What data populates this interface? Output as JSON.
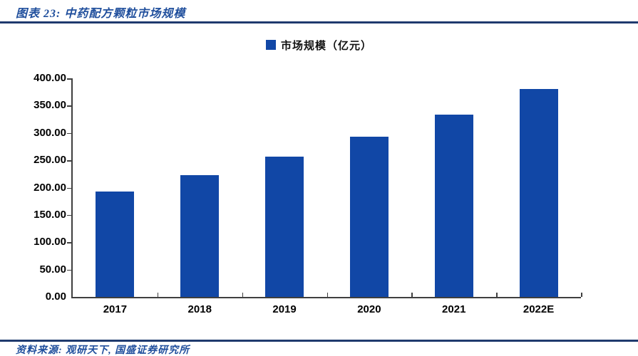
{
  "header": {
    "title": "图表 23:  中药配方颗粒市场规模"
  },
  "footer": {
    "source": "资料来源: 观研天下, 国盛证券研究所"
  },
  "colors": {
    "bar": "#1147A6",
    "accent_text": "#1F4E9C",
    "rule": "#1F3A6E",
    "axis": "#3F3F3F",
    "tick_label": "#000000"
  },
  "chart_data": {
    "type": "bar",
    "title": "图表 23: 中药配方颗粒市场规模",
    "categories": [
      "2017",
      "2018",
      "2019",
      "2020",
      "2021",
      "2022E"
    ],
    "series": [
      {
        "name": "市场规模（亿元）",
        "values": [
          193,
          223,
          257,
          293,
          334,
          380
        ]
      }
    ],
    "xlabel": "",
    "ylabel": "",
    "ylim": [
      0,
      400
    ],
    "ytick_step": 50,
    "ytick_labels": [
      "0.00",
      "50.00",
      "100.00",
      "150.00",
      "200.00",
      "250.00",
      "300.00",
      "350.00",
      "400.00"
    ],
    "grid": false,
    "legend_position": "top-center"
  }
}
